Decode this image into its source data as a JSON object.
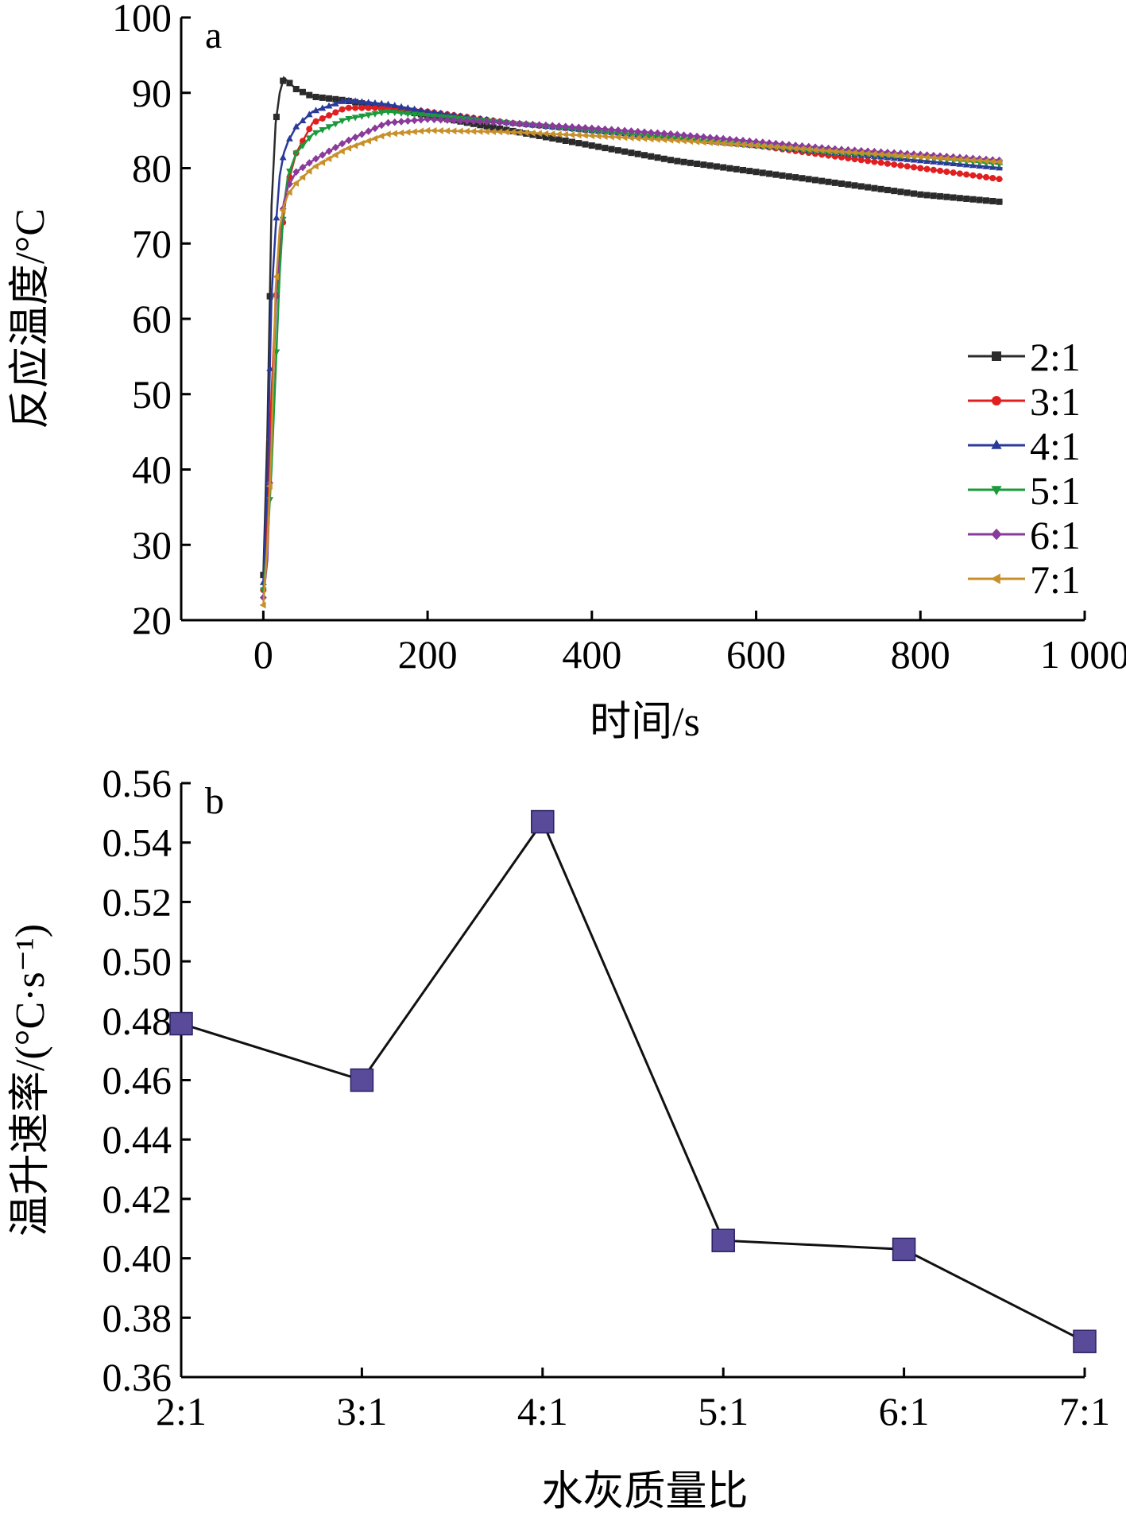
{
  "chart_data": [
    {
      "type": "line",
      "panel_label": "a",
      "xlabel": "时间/s",
      "ylabel": "反应温度/°C",
      "xlim": [
        -100,
        1000
      ],
      "ylim": [
        20,
        100
      ],
      "xticks": [
        0,
        200,
        400,
        600,
        800,
        1000
      ],
      "xtick_labels": [
        "0",
        "200",
        "400",
        "600",
        "800",
        "1 000"
      ],
      "yticks": [
        20,
        30,
        40,
        50,
        60,
        70,
        80,
        90,
        100
      ],
      "ytick_labels": [
        "20",
        "30",
        "40",
        "50",
        "60",
        "70",
        "80",
        "90",
        "100"
      ],
      "legend_position": "right",
      "series": [
        {
          "name": "2:1",
          "color": "#2b2b2b",
          "marker": "square",
          "x": [
            0,
            5,
            10,
            15,
            20,
            25,
            30,
            40,
            60,
            100,
            150,
            200,
            300,
            400,
            500,
            600,
            700,
            800,
            900
          ],
          "y": [
            26,
            45,
            75,
            86,
            90,
            92,
            91.5,
            90.5,
            89.5,
            89,
            88,
            87,
            85,
            83,
            81,
            79.5,
            78,
            76.5,
            75.5
          ]
        },
        {
          "name": "3:1",
          "color": "#e02020",
          "marker": "circle",
          "x": [
            0,
            5,
            10,
            15,
            20,
            25,
            30,
            40,
            60,
            100,
            150,
            200,
            300,
            400,
            500,
            600,
            700,
            800,
            900
          ],
          "y": [
            24,
            35,
            50,
            62,
            68,
            74,
            78,
            82,
            86,
            88,
            88,
            87.5,
            86,
            85,
            84,
            83,
            81.5,
            80,
            78.5
          ]
        },
        {
          "name": "4:1",
          "color": "#2a3a9a",
          "marker": "triangle-up",
          "x": [
            0,
            5,
            10,
            15,
            20,
            25,
            30,
            40,
            60,
            100,
            150,
            200,
            300,
            400,
            500,
            600,
            700,
            800,
            900
          ],
          "y": [
            25,
            39,
            63,
            72,
            79,
            82,
            83.5,
            85.5,
            87.5,
            89,
            88.5,
            87.5,
            86,
            85,
            84,
            83,
            82,
            81,
            80
          ]
        },
        {
          "name": "5:1",
          "color": "#1a9a3a",
          "marker": "triangle-down",
          "x": [
            0,
            5,
            10,
            15,
            20,
            25,
            30,
            40,
            60,
            100,
            150,
            200,
            300,
            400,
            500,
            600,
            700,
            800,
            900
          ],
          "y": [
            24,
            30,
            40,
            53,
            66,
            75,
            79,
            82,
            84.5,
            86.5,
            87.5,
            87,
            86,
            85,
            84,
            83,
            82,
            81.5,
            80.5
          ]
        },
        {
          "name": "6:1",
          "color": "#8a3a9a",
          "marker": "diamond",
          "x": [
            0,
            5,
            10,
            15,
            20,
            25,
            30,
            40,
            60,
            100,
            150,
            200,
            300,
            400,
            500,
            600,
            700,
            800,
            900
          ],
          "y": [
            23,
            28,
            45,
            61,
            71,
            75.5,
            77.5,
            79.5,
            81,
            83.5,
            86,
            86.5,
            86,
            85.3,
            84.5,
            83.5,
            82.5,
            81.8,
            81
          ]
        },
        {
          "name": "7:1",
          "color": "#c8902a",
          "marker": "triangle-left",
          "x": [
            0,
            5,
            10,
            15,
            20,
            25,
            30,
            40,
            60,
            100,
            150,
            200,
            300,
            400,
            500,
            600,
            700,
            800,
            900
          ],
          "y": [
            22,
            30,
            43,
            64,
            72,
            75,
            76.5,
            78,
            80,
            82.5,
            84.5,
            85,
            84.8,
            84.3,
            83.7,
            83,
            82.2,
            81.5,
            80.8
          ]
        }
      ]
    },
    {
      "type": "line",
      "panel_label": "b",
      "xlabel": "水灰质量比",
      "ylabel": "温升速率/(°C·s⁻¹)",
      "ylim": [
        0.36,
        0.56
      ],
      "yticks": [
        0.36,
        0.38,
        0.4,
        0.42,
        0.44,
        0.46,
        0.48,
        0.5,
        0.52,
        0.54,
        0.56
      ],
      "ytick_labels": [
        "0.36",
        "0.38",
        "0.40",
        "0.42",
        "0.44",
        "0.46",
        "0.48",
        "0.50",
        "0.52",
        "0.54",
        "0.56"
      ],
      "categories": [
        "2:1",
        "3:1",
        "4:1",
        "5:1",
        "6:1",
        "7:1"
      ],
      "line_color": "#111111",
      "marker_color": "#5a4a9a",
      "values": [
        0.479,
        0.46,
        0.547,
        0.406,
        0.403,
        0.372
      ]
    }
  ]
}
